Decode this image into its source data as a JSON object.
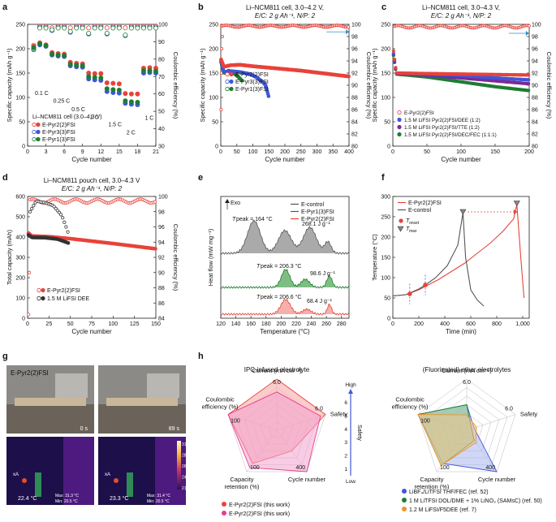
{
  "chart_data": [
    {
      "panel": "a",
      "type": "scatter",
      "title": "Li–NCM811 cell (3.0–4.3 V)",
      "xlabel": "Cycle number",
      "ylabel": "Specific capacity (mAh g⁻¹)",
      "y2label": "Coulombic efficiency (%)",
      "xlim": [
        0,
        21
      ],
      "ylim": [
        0,
        250
      ],
      "y2lim": [
        30,
        100
      ],
      "xticks": [
        0,
        3,
        6,
        9,
        12,
        15,
        18,
        21
      ],
      "yticks": [
        0,
        50,
        100,
        150,
        200,
        250
      ],
      "y2ticks": [
        30,
        40,
        50,
        60,
        70,
        80,
        90,
        100
      ],
      "rate_labels": [
        "0.1 C",
        "0.25 C",
        "0.5 C",
        "1 C",
        "1.5 C",
        "2 C",
        "1 C"
      ],
      "x": [
        1,
        2,
        3,
        4,
        5,
        6,
        7,
        8,
        9,
        10,
        11,
        12,
        13,
        14,
        15,
        16,
        17,
        18,
        19,
        20,
        21
      ],
      "series": [
        {
          "name": "E-Pyr2(2)FSI",
          "color": "#e8433b",
          "capacity": [
            205,
            212,
            208,
            192,
            190,
            189,
            172,
            170,
            169,
            150,
            149,
            149,
            130,
            129,
            128,
            108,
            107,
            107,
            160,
            161,
            160
          ],
          "ce": [
            88,
            99,
            99,
            98,
            99,
            99,
            98,
            99,
            99,
            98,
            99,
            99,
            98,
            99,
            99,
            98,
            99,
            99,
            99,
            99,
            99
          ]
        },
        {
          "name": "E-Pyr3(3)FSI",
          "color": "#3f57d9",
          "capacity": [
            200,
            208,
            205,
            187,
            185,
            184,
            165,
            163,
            162,
            138,
            136,
            135,
            112,
            110,
            109,
            88,
            86,
            85,
            150,
            151,
            150
          ],
          "ce": [
            86,
            99,
            99,
            97,
            99,
            99,
            96,
            99,
            99,
            95,
            99,
            99,
            95,
            99,
            99,
            94,
            99,
            99,
            99,
            99,
            99
          ]
        },
        {
          "name": "E-Pyr1(3)FSI",
          "color": "#1e7d32",
          "capacity": [
            202,
            210,
            206,
            189,
            187,
            186,
            168,
            166,
            165,
            143,
            141,
            140,
            118,
            116,
            115,
            93,
            91,
            90,
            155,
            155,
            154
          ],
          "ce": [
            87,
            99,
            99,
            98,
            99,
            99,
            97,
            99,
            99,
            96,
            99,
            99,
            96,
            99,
            99,
            95,
            99,
            99,
            99,
            99,
            99
          ]
        }
      ]
    },
    {
      "panel": "b",
      "type": "scatter",
      "title": "Li–NCM811 cell, 3.0–4.2 V,",
      "subtitle": "E/C: 2 g Ah⁻¹, N/P: 2",
      "xlabel": "Cycle number",
      "ylabel": "Specific capacity (mAh g⁻¹)",
      "y2label": "Coulombic efficiency (%)",
      "xlim": [
        0,
        400
      ],
      "ylim": [
        0,
        250
      ],
      "y2lim": [
        80,
        100
      ],
      "xticks": [
        0,
        50,
        100,
        150,
        200,
        250,
        300,
        350,
        400
      ],
      "yticks": [
        0,
        50,
        100,
        150,
        200,
        250
      ],
      "y2ticks": [
        80,
        82,
        84,
        86,
        88,
        90,
        92,
        94,
        96,
        98,
        100
      ],
      "series": [
        {
          "name": "E-Pyr2(2)FSI",
          "color": "#e8433b",
          "cycles": 400,
          "capacity_points": [
            [
              1,
              178
            ],
            [
              10,
              163
            ],
            [
              30,
              166
            ],
            [
              60,
              167
            ],
            [
              100,
              164
            ],
            [
              150,
              161
            ],
            [
              200,
              158
            ],
            [
              250,
              155
            ],
            [
              300,
              151
            ],
            [
              350,
              147
            ],
            [
              400,
              143
            ]
          ],
          "ce": 99.8
        },
        {
          "name": "E-Pyr3(3)FSI",
          "color": "#3f57d9",
          "cycles": 150,
          "capacity_points": [
            [
              1,
              175
            ],
            [
              10,
              152
            ],
            [
              30,
              154
            ],
            [
              60,
              152
            ],
            [
              90,
              148
            ],
            [
              110,
              142
            ],
            [
              130,
              132
            ],
            [
              140,
              125
            ],
            [
              150,
              100
            ]
          ]
        },
        {
          "name": "E-Pyr1(3)FSI",
          "color": "#1e7d32",
          "cycles": 65,
          "capacity_points": [
            [
              1,
              172
            ],
            [
              10,
              150
            ],
            [
              25,
              155
            ],
            [
              40,
              150
            ],
            [
              55,
              142
            ],
            [
              65,
              135
            ]
          ]
        }
      ]
    },
    {
      "panel": "c",
      "type": "scatter",
      "title": "Li–NCM811 cell, 3.0–4.3 V,",
      "subtitle": "E/C: 2 g Ah⁻¹, N/P: 2",
      "xlabel": "Cycle number",
      "ylabel": "Specific capacity (mAh g⁻¹)",
      "y2label": "Coulombic efficiency (%)",
      "xlim": [
        0,
        200
      ],
      "ylim": [
        0,
        250
      ],
      "y2lim": [
        80,
        100
      ],
      "xticks": [
        0,
        50,
        100,
        150,
        200
      ],
      "yticks": [
        0,
        50,
        100,
        150,
        200,
        250
      ],
      "y2ticks": [
        80,
        82,
        84,
        86,
        88,
        90,
        92,
        94,
        96,
        98,
        100
      ],
      "series": [
        {
          "name": "E-Pyr2(2)FSI",
          "color": "#e8433b",
          "capacity_points": [
            [
              1,
              195
            ],
            [
              5,
              150
            ],
            [
              50,
              149
            ],
            [
              100,
              148
            ],
            [
              150,
              147
            ],
            [
              200,
              146
            ]
          ]
        },
        {
          "name": "1.5 M LiFSI Pyr2(2)FSI/DEE (1:2)",
          "color": "#3f57d9",
          "capacity_points": [
            [
              1,
              190
            ],
            [
              5,
              150
            ],
            [
              50,
              148
            ],
            [
              100,
              145
            ],
            [
              150,
              140
            ],
            [
              200,
              136
            ]
          ]
        },
        {
          "name": "1.5 M LiFSI Pyr2(2)FSI/TTE (1:2)",
          "color": "#7b2a9a",
          "capacity_points": [
            [
              1,
              188
            ],
            [
              5,
              149
            ],
            [
              50,
              146
            ],
            [
              100,
              140
            ],
            [
              150,
              134
            ],
            [
              200,
              128
            ]
          ]
        },
        {
          "name": "1.5 M LiFSI Pyr2(2)FSI/DEC/FEC (1:1:1)",
          "color": "#1e7d32",
          "capacity_points": [
            [
              1,
              186
            ],
            [
              5,
              148
            ],
            [
              50,
              142
            ],
            [
              100,
              132
            ],
            [
              150,
              122
            ],
            [
              200,
              114
            ]
          ]
        }
      ]
    },
    {
      "panel": "d",
      "type": "scatter",
      "title": "Li–NCM811 pouch cell, 3.0–4.3 V",
      "subtitle": "E/C: 2 g Ah⁻¹, N/P: 2",
      "xlabel": "Cycle number",
      "ylabel": "Total capacity (mAh)",
      "y2label": "Coulombic efficiency (%)",
      "xlim": [
        0,
        150
      ],
      "ylim": [
        0,
        600
      ],
      "y2lim": [
        84,
        100
      ],
      "xticks": [
        0,
        25,
        50,
        75,
        100,
        125,
        150
      ],
      "yticks": [
        0,
        100,
        200,
        300,
        400,
        500,
        600
      ],
      "y2ticks": [
        84,
        86,
        88,
        90,
        92,
        94,
        96,
        98,
        100
      ],
      "series": [
        {
          "name": "E-Pyr2(2)FSI",
          "color": "#e8433b",
          "capacity_points": [
            [
              1,
              420
            ],
            [
              5,
              405
            ],
            [
              25,
              402
            ],
            [
              50,
              392
            ],
            [
              75,
              380
            ],
            [
              100,
              368
            ],
            [
              125,
              355
            ],
            [
              150,
              342
            ]
          ],
          "ce": 99.5
        },
        {
          "name": "1.5 M LiFSI DEE",
          "color": "#333333",
          "capacity_points": [
            [
              1,
              410
            ],
            [
              5,
              398
            ],
            [
              20,
              397
            ],
            [
              35,
              390
            ],
            [
              45,
              375
            ],
            [
              48,
              370
            ]
          ],
          "ce_points": [
            [
              3,
              98
            ],
            [
              10,
              99.4
            ],
            [
              20,
              99.2
            ],
            [
              30,
              98.8
            ],
            [
              40,
              97.5
            ],
            [
              45,
              96
            ],
            [
              48,
              95
            ]
          ]
        }
      ]
    },
    {
      "panel": "e",
      "type": "line",
      "xlabel": "Temperature (°C)",
      "ylabel": "Heat flow (mW mg⁻¹)",
      "exo_label": "Exo",
      "xlim": [
        120,
        290
      ],
      "xticks": [
        120,
        140,
        160,
        180,
        200,
        220,
        240,
        260,
        280
      ],
      "series": [
        {
          "name": "E-control",
          "color": "#555555",
          "fill": "#9b9b9b",
          "tpeak_label": "T",
          "tpeak_value": "peak = 164 °C",
          "enthalpy": "268.1 J g⁻¹"
        },
        {
          "name": "E-Pyr1(3)FSI",
          "color": "#1e7d32",
          "fill": "#69b36c",
          "tpeak_label": "T",
          "tpeak_value": "peak = 206.3 °C",
          "enthalpy": "98.6 J g⁻¹"
        },
        {
          "name": "E-Pyr2(2)FSI",
          "color": "#e8433b",
          "fill": "#f3a29d",
          "tpeak_label": "T",
          "tpeak_value": "peak = 206.6 °C",
          "enthalpy": "68.4 J g⁻¹"
        }
      ]
    },
    {
      "panel": "f",
      "type": "line",
      "xlabel": "Time (min)",
      "ylabel": "Temperature (°C)",
      "xlim": [
        0,
        1050
      ],
      "ylim": [
        0,
        300
      ],
      "xticks": [
        0,
        200,
        400,
        600,
        800,
        1000
      ],
      "xtick_labels": [
        "0",
        "200",
        "400",
        "600",
        "800",
        "1,000"
      ],
      "yticks": [
        0,
        50,
        100,
        150,
        200,
        250,
        300
      ],
      "series": [
        {
          "name": "E-Pyr2(2)FSI",
          "color": "#e8433b",
          "points": [
            [
              0,
              55
            ],
            [
              100,
              58
            ],
            [
              200,
              70
            ],
            [
              260,
              80
            ],
            [
              350,
              95
            ],
            [
              450,
              115
            ],
            [
              550,
              135
            ],
            [
              650,
              160
            ],
            [
              750,
              185
            ],
            [
              850,
              215
            ],
            [
              930,
              245
            ],
            [
              955,
              280
            ],
            [
              985,
              150
            ],
            [
              1010,
              50
            ]
          ]
        },
        {
          "name": "E-control",
          "color": "#555555",
          "points": [
            [
              0,
              55
            ],
            [
              100,
              58
            ],
            [
              200,
              72
            ],
            [
              250,
              82
            ],
            [
              330,
              100
            ],
            [
              420,
              130
            ],
            [
              500,
              180
            ],
            [
              540,
              260
            ],
            [
              560,
              150
            ],
            [
              600,
              70
            ],
            [
              650,
              45
            ],
            [
              700,
              30
            ]
          ]
        }
      ],
      "markers": {
        "tonset": "onset",
        "tmax": "max"
      }
    },
    {
      "panel": "g",
      "type": "table",
      "sample": "E-Pyr2(2)FSI",
      "frames": [
        {
          "time": "0 s",
          "spot": "22.4 °C",
          "max": "Max: 31.3 °C",
          "min": "Min: 20.5 °C",
          "marker": "A"
        },
        {
          "time": "89 s",
          "spot": "23.3 °C",
          "max": "Max: 31.4 °C",
          "min": "Min: 20.5 °C",
          "marker": "A"
        }
      ],
      "colorbar": [
        "31.0",
        "28.0",
        "26.0",
        "24.0",
        "21.4"
      ]
    },
    {
      "panel": "h",
      "type": "radar",
      "axes": [
        "Current (mA cm⁻²)",
        "Safety",
        "Cycle number",
        "Capacity retention (%)",
        "Coulombic efficiency (%)"
      ],
      "max_labels": [
        "6.0",
        "6.0",
        "400",
        "100",
        "100"
      ],
      "charts": [
        {
          "title": "IPC-infused electrolyte",
          "series": [
            {
              "name": "E-Pyr2(2)FSI (this work)",
              "color": "#e8433b",
              "fill": "#f5a3a0",
              "values": [
                1.0,
                1.0,
                0.5,
                0.8,
                1.0
              ]
            },
            {
              "name": "E-Pyr2(2)FSI (this work)",
              "color": "#e83c8f",
              "fill": "#f3a3cf",
              "values": [
                0.75,
                0.9,
                1.0,
                0.9,
                1.0
              ]
            }
          ]
        },
        {
          "title": "(Fluorinated) ether electrolytes",
          "series": [
            {
              "name": "LiBF₄/LiTFSI THF/FEC (ref. 52)",
              "color": "#3f57d9",
              "fill": "#a9b6ee",
              "values": [
                0.5,
                0.15,
                1.0,
                0.8,
                1.0
              ]
            },
            {
              "name": "1 M LiTFSI DOL/DME + 1% LiNO₃ (SAMsC) (ref. 50)",
              "color": "#1e7d32",
              "fill": "#7fc481",
              "values": [
                0.5,
                0.1,
                0.25,
                0.85,
                1.0
              ]
            },
            {
              "name": "1.2 M LiFSI/F5DEE (ref. 7)",
              "color": "#f0922b",
              "fill": "#f6c48b",
              "values": [
                0.3,
                0.2,
                0.3,
                0.85,
                1.0
              ]
            }
          ]
        }
      ],
      "safety_scale": {
        "label": "Safety",
        "high": "High",
        "low": "Low",
        "ticks": [
          "1",
          "2",
          "3",
          "4",
          "5",
          "6"
        ]
      }
    }
  ]
}
